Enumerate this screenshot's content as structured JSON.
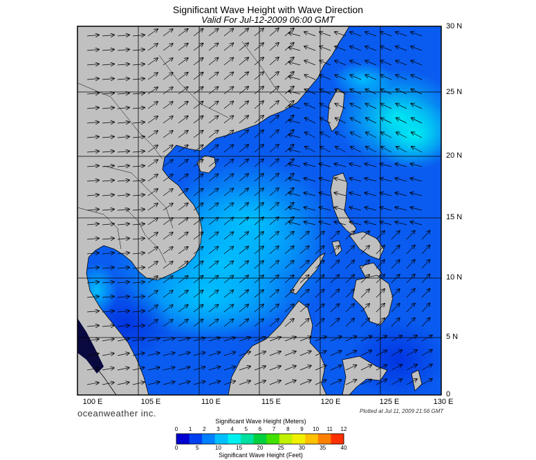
{
  "header": {
    "title": "Significant Wave Height with Wave Direction",
    "subtitle": "Valid For Jul-12-2009 06:00 GMT"
  },
  "map": {
    "region": "South China Sea",
    "lon_labels": [
      "100 E",
      "105 E",
      "110 E",
      "115 E",
      "120 E",
      "125 E",
      "130 E"
    ],
    "lat_labels": [
      "30 N",
      "25 N",
      "20 N",
      "15 N",
      "10 N",
      "5 N",
      "0"
    ],
    "land_color": "#c0c0c0",
    "coast_color": "#000000",
    "grid_color": "#000000",
    "arrow_color": "#000000",
    "wave_direction": "southwest monsoon swell, arrows toward northeast over central basin, toward west/northwest east of Taiwan and Luzon"
  },
  "footer": {
    "brand": "oceanweather inc.",
    "plotted": "Plotted at Jul 11, 2009 21:56 GMT"
  },
  "colorbar": {
    "title_top": "Significant Wave Height (Meters)",
    "title_bottom": "Significant Wave Height (Feet)",
    "meters_ticks": [
      "0",
      "1",
      "2",
      "3",
      "4",
      "5",
      "6",
      "7",
      "8",
      "9",
      "10",
      "11",
      "12"
    ],
    "feet_ticks": [
      "0",
      "5",
      "10",
      "15",
      "20",
      "25",
      "30",
      "35",
      "40"
    ],
    "colors": [
      "#0000d0",
      "#0040f0",
      "#0080ff",
      "#00c0ff",
      "#00f0f0",
      "#00e0a0",
      "#00d040",
      "#40e000",
      "#c0f000",
      "#f0f000",
      "#ffc000",
      "#ff8000",
      "#ff3000"
    ]
  }
}
